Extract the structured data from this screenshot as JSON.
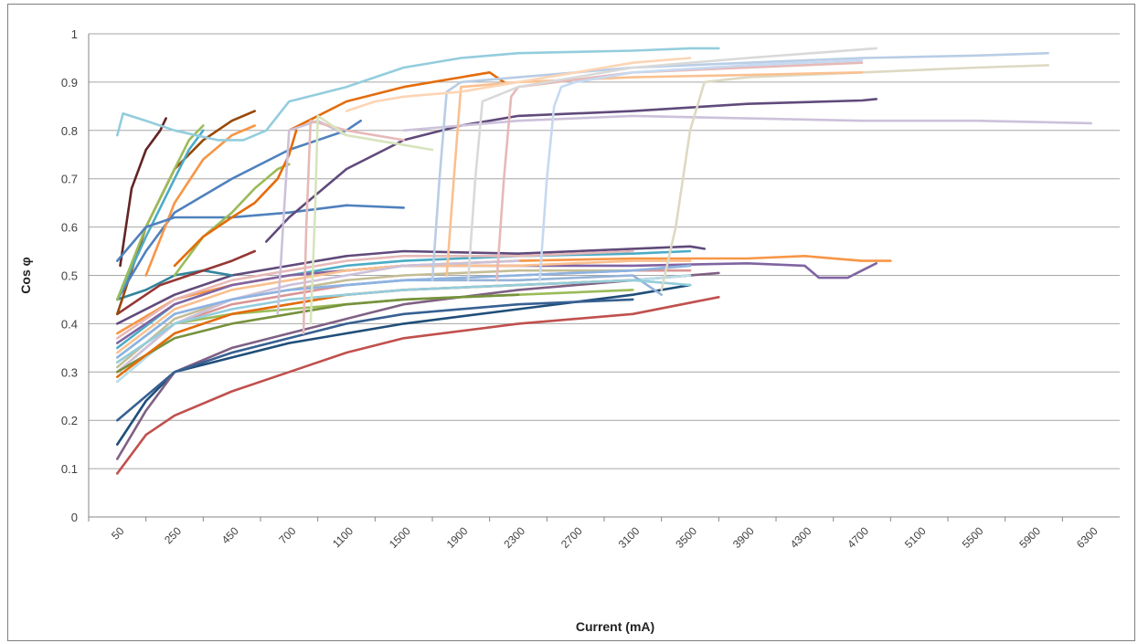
{
  "chart_data": {
    "type": "line",
    "title": "",
    "xlabel": "Current (mA)",
    "ylabel": "Cos φ",
    "ylim": [
      0,
      1
    ],
    "y_ticks": [
      "0",
      "0.1",
      "0.2",
      "0.3",
      "0.4",
      "0.5",
      "0.6",
      "0.7",
      "0.8",
      "0.9",
      "1"
    ],
    "categories": [
      "50",
      "250",
      "450",
      "700",
      "1100",
      "1500",
      "1900",
      "2300",
      "2700",
      "3100",
      "3500",
      "3900",
      "4300",
      "4700",
      "5100",
      "5500",
      "5900",
      "6300"
    ],
    "grid": "horizontal",
    "legend": "none",
    "series": [
      {
        "color": "#c0504d",
        "x": [
          50,
          150,
          250,
          450,
          700,
          1100,
          1500,
          2300,
          3100,
          3700
        ],
        "y": [
          0.09,
          0.17,
          0.21,
          0.26,
          0.3,
          0.34,
          0.37,
          0.4,
          0.42,
          0.455
        ]
      },
      {
        "color": "#1f4e79",
        "x": [
          50,
          150,
          250,
          450,
          700,
          1100,
          1500,
          2300,
          3100,
          3500
        ],
        "y": [
          0.15,
          0.24,
          0.3,
          0.33,
          0.36,
          0.38,
          0.4,
          0.43,
          0.46,
          0.48
        ]
      },
      {
        "color": "#7f6084",
        "x": [
          50,
          150,
          250,
          450,
          700,
          1100,
          1500,
          2300,
          3100,
          3700
        ],
        "y": [
          0.12,
          0.22,
          0.3,
          0.35,
          0.38,
          0.41,
          0.44,
          0.47,
          0.49,
          0.505
        ]
      },
      {
        "color": "#604a7b",
        "x": [
          50,
          250,
          450,
          700,
          1100,
          1500,
          2300,
          3100,
          3500,
          3600
        ],
        "y": [
          0.4,
          0.46,
          0.5,
          0.52,
          0.54,
          0.55,
          0.545,
          0.555,
          0.56,
          0.555
        ]
      },
      {
        "color": "#4bacc6",
        "x": [
          50,
          250,
          450,
          700,
          1100,
          1500,
          2300,
          3100,
          3500
        ],
        "y": [
          0.35,
          0.44,
          0.48,
          0.5,
          0.52,
          0.53,
          0.54,
          0.545,
          0.55
        ]
      },
      {
        "color": "#9bbb59",
        "x": [
          50,
          250,
          450,
          700,
          1100,
          1500,
          2300,
          3100
        ],
        "y": [
          0.32,
          0.4,
          0.42,
          0.43,
          0.44,
          0.45,
          0.46,
          0.47
        ]
      },
      {
        "color": "#f79646",
        "x": [
          50,
          250,
          450,
          700,
          1100,
          1500,
          2300,
          3100,
          3900,
          4300,
          4700,
          4900
        ],
        "y": [
          0.38,
          0.45,
          0.48,
          0.5,
          0.51,
          0.52,
          0.53,
          0.535,
          0.535,
          0.54,
          0.53,
          0.53
        ]
      },
      {
        "color": "#8064a2",
        "x": [
          50,
          250,
          450,
          700,
          1100,
          1500,
          2300,
          3100,
          3900,
          4300,
          4400,
          4600,
          4700,
          4800
        ],
        "y": [
          0.36,
          0.44,
          0.48,
          0.5,
          0.51,
          0.52,
          0.52,
          0.52,
          0.525,
          0.52,
          0.495,
          0.495,
          0.51,
          0.525
        ]
      },
      {
        "color": "#d99694",
        "x": [
          50,
          250,
          450,
          700,
          1100,
          1500,
          2300,
          3100,
          3500
        ],
        "y": [
          0.3,
          0.4,
          0.44,
          0.46,
          0.48,
          0.49,
          0.5,
          0.51,
          0.51
        ]
      },
      {
        "color": "#b7dee8",
        "x": [
          50,
          250,
          450,
          700,
          1100,
          1500,
          2300,
          3100,
          3500
        ],
        "y": [
          0.28,
          0.38,
          0.42,
          0.44,
          0.46,
          0.47,
          0.48,
          0.49,
          0.5
        ]
      },
      {
        "color": "#95b3d7",
        "x": [
          50,
          250,
          450,
          700,
          1100,
          1500,
          2300,
          3100,
          3300
        ],
        "y": [
          0.33,
          0.42,
          0.45,
          0.47,
          0.48,
          0.49,
          0.49,
          0.5,
          0.46
        ]
      },
      {
        "color": "#c4bd97",
        "x": [
          50,
          250,
          450,
          700,
          1100,
          1500,
          2300,
          3100,
          3500
        ],
        "y": [
          0.31,
          0.41,
          0.45,
          0.47,
          0.49,
          0.5,
          0.51,
          0.51,
          0.52
        ]
      },
      {
        "color": "#fac090",
        "x": [
          50,
          250,
          450,
          700,
          1100,
          1500,
          2300,
          3100,
          3500
        ],
        "y": [
          0.34,
          0.43,
          0.47,
          0.49,
          0.51,
          0.52,
          0.52,
          0.53,
          0.53
        ]
      },
      {
        "color": "#e6b9b8",
        "x": [
          50,
          250,
          450,
          700,
          1100,
          1500,
          2300,
          3100
        ],
        "y": [
          0.37,
          0.45,
          0.49,
          0.51,
          0.53,
          0.54,
          0.54,
          0.55
        ]
      },
      {
        "color": "#ccc1da",
        "x": [
          50,
          250,
          450,
          700,
          1100,
          1500,
          2300
        ],
        "y": [
          0.3,
          0.4,
          0.45,
          0.48,
          0.5,
          0.52,
          0.53
        ]
      },
      {
        "color": "#31859c",
        "x": [
          50,
          150,
          250,
          350,
          450
        ],
        "y": [
          0.45,
          0.47,
          0.5,
          0.51,
          0.5
        ]
      },
      {
        "color": "#376092",
        "x": [
          50,
          250,
          450,
          700,
          1100,
          1500,
          2300,
          3100
        ],
        "y": [
          0.2,
          0.3,
          0.34,
          0.37,
          0.4,
          0.42,
          0.44,
          0.45
        ]
      },
      {
        "color": "#953734",
        "x": [
          50,
          200,
          300,
          450,
          550
        ],
        "y": [
          0.42,
          0.48,
          0.5,
          0.53,
          0.55
        ]
      },
      {
        "color": "#76923c",
        "x": [
          50,
          250,
          450,
          700,
          1100,
          1500,
          2300
        ],
        "y": [
          0.3,
          0.37,
          0.4,
          0.42,
          0.44,
          0.45,
          0.46
        ]
      },
      {
        "color": "#e46c0a",
        "x": [
          50,
          250,
          450,
          700,
          1100,
          1500,
          2300,
          3100
        ],
        "y": [
          0.29,
          0.38,
          0.42,
          0.44,
          0.46,
          0.47,
          0.48,
          0.49
        ]
      },
      {
        "color": "#93cddd",
        "x": [
          50,
          250,
          450,
          700,
          1100,
          1500,
          2300,
          3100,
          3500
        ],
        "y": [
          0.32,
          0.4,
          0.43,
          0.45,
          0.46,
          0.47,
          0.48,
          0.49,
          0.48
        ]
      },
      {
        "color": "#8db3e2",
        "x": [
          50,
          250,
          450,
          700,
          1100,
          1500,
          2300,
          3100,
          3500
        ],
        "y": [
          0.33,
          0.42,
          0.45,
          0.47,
          0.48,
          0.49,
          0.5,
          0.51,
          0.52
        ]
      },
      {
        "color": "#632423",
        "x": [
          60,
          100,
          150,
          200,
          220
        ],
        "y": [
          0.52,
          0.68,
          0.76,
          0.8,
          0.825
        ]
      },
      {
        "color": "#974806",
        "x": [
          50,
          150,
          250,
          350,
          450,
          550
        ],
        "y": [
          0.42,
          0.6,
          0.72,
          0.78,
          0.82,
          0.84
        ]
      },
      {
        "color": "#4f81bd",
        "x": [
          50,
          150,
          250,
          450,
          700,
          1100,
          1200
        ],
        "y": [
          0.45,
          0.55,
          0.63,
          0.7,
          0.76,
          0.8,
          0.82
        ]
      },
      {
        "color": "#4bacc6",
        "x": [
          50,
          150,
          250,
          300,
          350
        ],
        "y": [
          0.45,
          0.58,
          0.7,
          0.76,
          0.8
        ]
      },
      {
        "color": "#9bbb59",
        "x": [
          50,
          150,
          250,
          300,
          350
        ],
        "y": [
          0.45,
          0.6,
          0.72,
          0.78,
          0.81
        ]
      },
      {
        "color": "#f79646",
        "x": [
          150,
          250,
          350,
          450,
          550
        ],
        "y": [
          0.5,
          0.65,
          0.74,
          0.79,
          0.81
        ]
      },
      {
        "color": "#4f81bd",
        "x": [
          50,
          150,
          250,
          450,
          700,
          1100,
          1500
        ],
        "y": [
          0.53,
          0.6,
          0.62,
          0.62,
          0.63,
          0.645,
          0.64
        ]
      },
      {
        "color": "#9bbb59",
        "x": [
          250,
          350,
          450,
          550,
          650,
          700
        ],
        "y": [
          0.5,
          0.58,
          0.63,
          0.68,
          0.72,
          0.73
        ]
      },
      {
        "color": "#e46c0a",
        "x": [
          250,
          350,
          450,
          550,
          650,
          700,
          750
        ],
        "y": [
          0.52,
          0.58,
          0.62,
          0.65,
          0.7,
          0.75,
          0.8
        ]
      },
      {
        "color": "#93cddd",
        "x": [
          50,
          70,
          150,
          250,
          400,
          500,
          600,
          650,
          700,
          1100,
          1500,
          1900,
          2300,
          3100,
          3500,
          3700
        ],
        "y": [
          0.79,
          0.835,
          0.82,
          0.8,
          0.78,
          0.78,
          0.8,
          0.83,
          0.86,
          0.89,
          0.93,
          0.95,
          0.96,
          0.965,
          0.97,
          0.97
        ]
      },
      {
        "color": "#e46c0a",
        "x": [
          700,
          1100,
          1500,
          1900,
          2100,
          2200
        ],
        "y": [
          0.8,
          0.86,
          0.89,
          0.91,
          0.92,
          0.9
        ]
      },
      {
        "color": "#604a7b",
        "x": [
          600,
          700,
          1100,
          1500,
          1900,
          2300,
          3100,
          3900,
          4700,
          4800
        ],
        "y": [
          0.57,
          0.62,
          0.72,
          0.78,
          0.81,
          0.83,
          0.84,
          0.855,
          0.862,
          0.865
        ]
      },
      {
        "color": "#ccc1da",
        "x": [
          1500,
          1900,
          2300,
          3100,
          3900,
          4700,
          5500,
          6300
        ],
        "y": [
          0.8,
          0.81,
          0.82,
          0.83,
          0.825,
          0.82,
          0.82,
          0.815
        ]
      },
      {
        "color": "#ddd9c3",
        "x": [
          3300,
          3400,
          3500,
          3600,
          3900,
          4700,
          5500,
          6000
        ],
        "y": [
          0.47,
          0.6,
          0.8,
          0.9,
          0.91,
          0.92,
          0.93,
          0.935
        ]
      },
      {
        "color": "#fac090",
        "x": [
          1800,
          1850,
          1900,
          2300,
          3100,
          3900,
          4700
        ],
        "y": [
          0.5,
          0.7,
          0.89,
          0.9,
          0.91,
          0.915,
          0.92
        ]
      },
      {
        "color": "#e6b9b8",
        "x": [
          2150,
          2200,
          2250,
          2300,
          3100,
          3900,
          4700
        ],
        "y": [
          0.49,
          0.7,
          0.87,
          0.89,
          0.92,
          0.93,
          0.94
        ]
      },
      {
        "color": "#b9cde5",
        "x": [
          1700,
          1750,
          1800,
          1900,
          2300,
          3100,
          3900,
          4700,
          5500,
          6000
        ],
        "y": [
          0.49,
          0.7,
          0.88,
          0.9,
          0.91,
          0.93,
          0.94,
          0.95,
          0.955,
          0.96
        ]
      },
      {
        "color": "#d9d9d9",
        "x": [
          1950,
          2000,
          2050,
          2300,
          3100,
          3900,
          4800
        ],
        "y": [
          0.49,
          0.7,
          0.86,
          0.89,
          0.93,
          0.95,
          0.97
        ]
      },
      {
        "color": "#c6d9f1",
        "x": [
          2450,
          2500,
          2550,
          2600,
          2700,
          3100,
          3900,
          4700
        ],
        "y": [
          0.49,
          0.7,
          0.85,
          0.89,
          0.9,
          0.92,
          0.935,
          0.945
        ]
      },
      {
        "color": "#ccc1da",
        "x": [
          650,
          680,
          700,
          900,
          1100
        ],
        "y": [
          0.42,
          0.65,
          0.8,
          0.82,
          0.79
        ]
      },
      {
        "color": "#e6b9b8",
        "x": [
          800,
          820,
          850,
          1100,
          1500
        ],
        "y": [
          0.38,
          0.6,
          0.82,
          0.8,
          0.78
        ]
      },
      {
        "color": "#d7e4bd",
        "x": [
          850,
          880,
          900,
          1100,
          1500,
          1700
        ],
        "y": [
          0.4,
          0.62,
          0.83,
          0.79,
          0.77,
          0.76
        ]
      },
      {
        "color": "#fcd5b4",
        "x": [
          1100,
          1300,
          1500,
          1900,
          2300,
          2700,
          3100,
          3500
        ],
        "y": [
          0.84,
          0.86,
          0.87,
          0.88,
          0.9,
          0.92,
          0.94,
          0.95
        ]
      }
    ]
  }
}
